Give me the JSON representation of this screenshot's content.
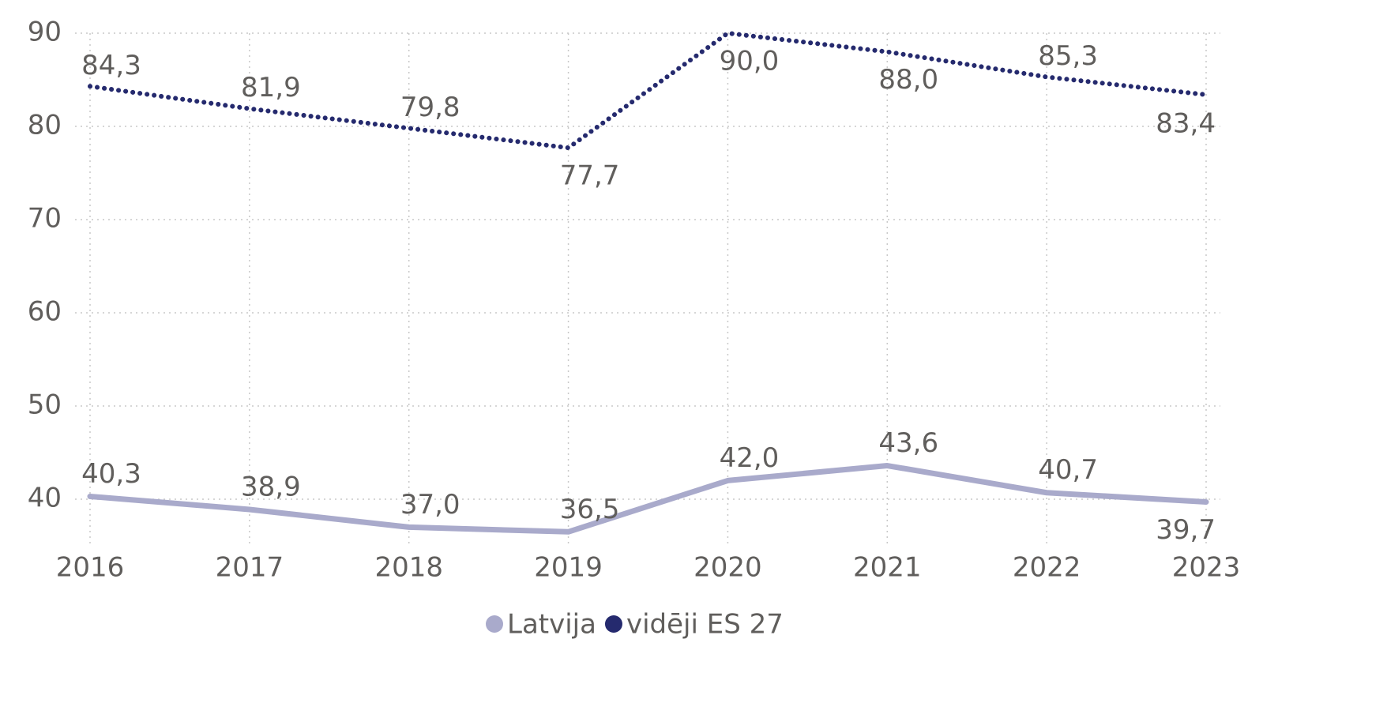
{
  "chart_data": {
    "type": "line",
    "categories": [
      "2016",
      "2017",
      "2018",
      "2019",
      "2020",
      "2021",
      "2022",
      "2023"
    ],
    "series": [
      {
        "name": "Latvija",
        "color": "#a9aacb",
        "dash": false,
        "values": [
          40.3,
          38.9,
          37.0,
          36.5,
          42.0,
          43.6,
          40.7,
          39.7
        ],
        "value_labels": [
          "40,3",
          "38,9",
          "37,0",
          "36,5",
          "42,0",
          "43,6",
          "40,7",
          "39,7"
        ]
      },
      {
        "name": "vidēji ES 27",
        "color": "#252a6e",
        "dash": true,
        "values": [
          84.3,
          81.9,
          79.8,
          77.7,
          90.0,
          88.0,
          85.3,
          83.4
        ],
        "value_labels": [
          "84,3",
          "81,9",
          "79,8",
          "77,7",
          "90,0",
          "88,0",
          "85,3",
          "83,4"
        ]
      }
    ],
    "ylim": [
      35,
      90
    ],
    "yticks": [
      40,
      50,
      60,
      70,
      80,
      90
    ],
    "grid": true,
    "legend": "bottom"
  }
}
